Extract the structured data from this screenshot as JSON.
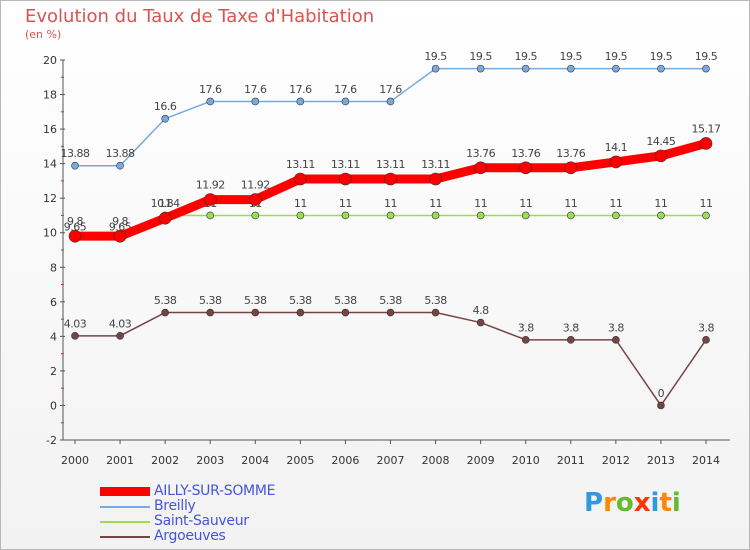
{
  "title": "Evolution du Taux de Taxe d'Habitation",
  "subtitle": "(en %)",
  "chart_data": {
    "type": "line",
    "title": "Evolution du Taux de Taxe d'Habitation",
    "ylabel": "(en %)",
    "x": [
      "2000",
      "2001",
      "2002",
      "2003",
      "2004",
      "2005",
      "2006",
      "2007",
      "2008",
      "2009",
      "2010",
      "2011",
      "2012",
      "2013",
      "2014"
    ],
    "ylim": [
      -2,
      20
    ],
    "yticks": [
      "-2",
      "0",
      "2",
      "4",
      "6",
      "8",
      "10",
      "12",
      "14",
      "16",
      "18",
      "20"
    ],
    "grid": false,
    "legend_position": "bottom-left",
    "series": [
      {
        "name": "AILLY-SUR-SOMME",
        "color": "#ff0000",
        "values": [
          9.8,
          9.8,
          10.84,
          11.92,
          11.92,
          13.11,
          13.11,
          13.11,
          13.11,
          13.76,
          13.76,
          13.76,
          14.1,
          14.45,
          15.17
        ],
        "labels": [
          "9.8",
          "9.8",
          "10.84",
          "11.92",
          "11.92",
          "13.11",
          "13.11",
          "13.11",
          "13.11",
          "13.76",
          "13.76",
          "13.76",
          "14.1",
          "14.45",
          "15.17"
        ]
      },
      {
        "name": "Breilly",
        "color": "#77aadd",
        "values": [
          13.88,
          13.88,
          16.6,
          17.6,
          17.6,
          17.6,
          17.6,
          17.6,
          19.5,
          19.5,
          19.5,
          19.5,
          19.5,
          19.5,
          19.5
        ],
        "labels": [
          "13.88",
          "13.88",
          "16.6",
          "17.6",
          "17.6",
          "17.6",
          "17.6",
          "17.6",
          "19.5",
          "19.5",
          "19.5",
          "19.5",
          "19.5",
          "19.5",
          "19.5"
        ]
      },
      {
        "name": "Saint-Sauveur",
        "color": "#99dd55",
        "values": [
          9.65,
          9.65,
          11,
          11,
          11,
          11,
          11,
          11,
          11,
          11,
          11,
          11,
          11,
          11,
          11
        ],
        "labels": [
          "9.65",
          "9.65",
          "11",
          "11",
          "11",
          "11",
          "11",
          "11",
          "11",
          "11",
          "11",
          "11",
          "11",
          "11",
          "11"
        ]
      },
      {
        "name": "Argoeuves",
        "color": "#774444",
        "values": [
          4.03,
          4.03,
          5.38,
          5.38,
          5.38,
          5.38,
          5.38,
          5.38,
          5.38,
          4.8,
          3.8,
          3.8,
          3.8,
          0,
          3.8
        ],
        "labels": [
          "4.03",
          "4.03",
          "5.38",
          "5.38",
          "5.38",
          "5.38",
          "5.38",
          "5.38",
          "5.38",
          "4.8",
          "3.8",
          "3.8",
          "3.8",
          "0",
          "3.8"
        ]
      }
    ]
  },
  "legend": {
    "items": [
      {
        "name": "AILLY-SUR-SOMME",
        "color": "#ff0000",
        "text_color": "#4455dd"
      },
      {
        "name": "Breilly",
        "color": "#77aadd",
        "text_color": "#4455dd"
      },
      {
        "name": "Saint-Sauveur",
        "color": "#99dd55",
        "text_color": "#4455dd"
      },
      {
        "name": "Argoeuves",
        "color": "#774444",
        "text_color": "#4455dd"
      }
    ]
  },
  "logo": {
    "letters": [
      "P",
      "r",
      "o",
      "x",
      "i",
      "t",
      "i"
    ],
    "colors": [
      "#3399dd",
      "#ff8800",
      "#66bb33",
      "#ff3300",
      "#3399dd",
      "#ff8800",
      "#66bb33"
    ]
  }
}
